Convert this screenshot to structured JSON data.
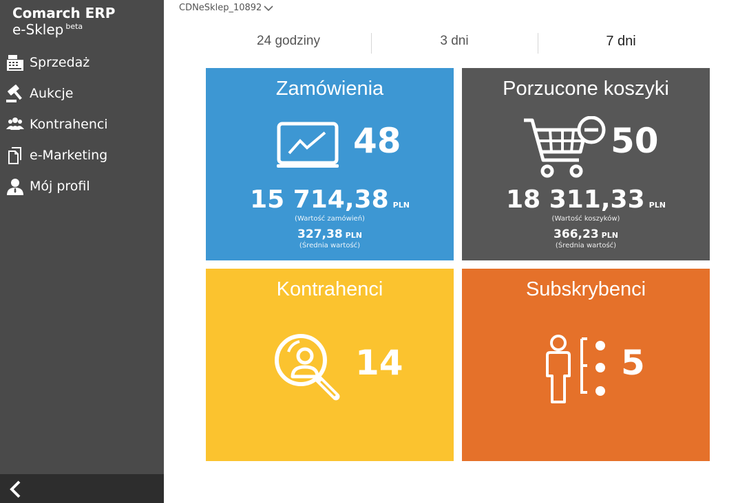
{
  "sidebar": {
    "brand_title": "Comarch ERP",
    "brand_sub": "e-Sklep",
    "brand_beta": "beta",
    "items": [
      {
        "label": "Sprzedaż",
        "icon": "cash-register-icon"
      },
      {
        "label": "Aukcje",
        "icon": "gavel-icon"
      },
      {
        "label": "Kontrahenci",
        "icon": "users-icon"
      },
      {
        "label": "e-Marketing",
        "icon": "documents-icon"
      },
      {
        "label": "Mój profil",
        "icon": "user-profile-icon"
      }
    ],
    "collapse_icon": "chevron-left-icon"
  },
  "header": {
    "store_name": "CDNeSklep_10892"
  },
  "periods": {
    "tabs": [
      "24 godziny",
      "3 dni",
      "7 dni"
    ],
    "active": "7 dni"
  },
  "tiles": {
    "orders": {
      "title": "Zamówienia",
      "count": "48",
      "amount": "15 714,38",
      "currency": "PLN",
      "amount_note": "(Wartość zamówień)",
      "avg": "327,38",
      "avg_currency": "PLN",
      "avg_note": "(Średnia wartość)",
      "icon": "chart-monitor-icon",
      "color": "#3d97d3"
    },
    "carts": {
      "title": "Porzucone koszyki",
      "count": "50",
      "amount": "18 311,33",
      "currency": "PLN",
      "amount_note": "(Wartość koszyków)",
      "avg": "366,23",
      "avg_currency": "PLN",
      "avg_note": "(Średnia wartość)",
      "icon": "cart-remove-icon",
      "color": "#575757"
    },
    "contractors": {
      "title": "Kontrahenci",
      "count": "14",
      "icon": "user-search-icon",
      "color": "#fbc32f"
    },
    "subscribers": {
      "title": "Subskrybenci",
      "count": "5",
      "icon": "subscriber-icon",
      "color": "#e5712a"
    }
  }
}
